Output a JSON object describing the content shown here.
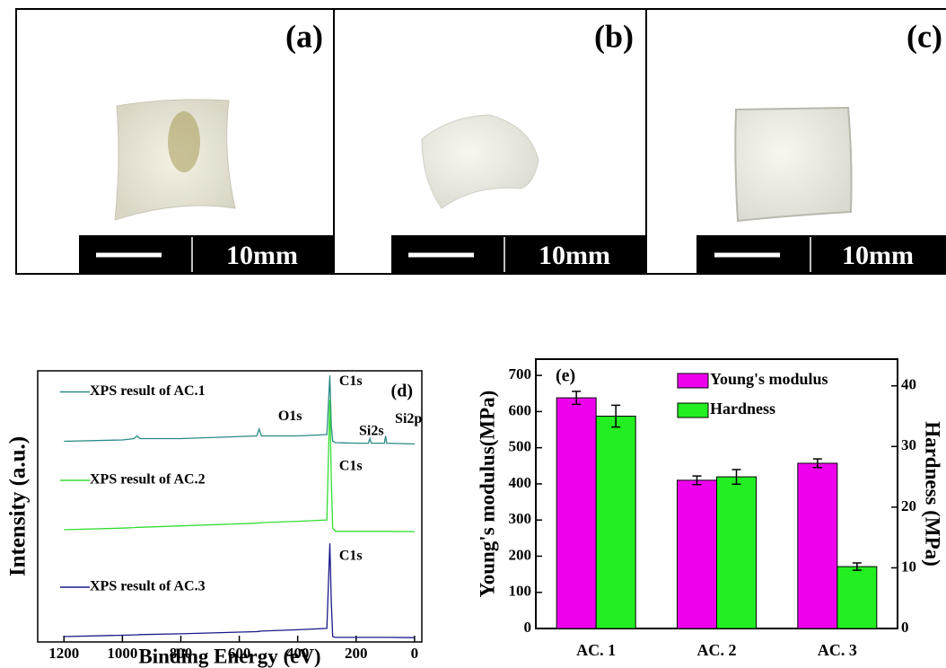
{
  "panels": [
    {
      "label": "(a)",
      "scale": "10mm"
    },
    {
      "label": "(b)",
      "scale": "10mm"
    },
    {
      "label": "(c)",
      "scale": "10mm"
    }
  ],
  "chart_data": [
    {
      "type": "line",
      "panel_label": "(d)",
      "xlabel": "Binding Energy (eV)",
      "ylabel": "Intensity (a.u.)",
      "x": [
        1200,
        1000,
        960,
        950,
        940,
        800,
        540,
        532,
        524,
        400,
        300,
        290,
        285,
        280,
        270,
        200,
        158,
        153,
        148,
        103,
        99,
        95,
        0
      ],
      "xlim": [
        1290,
        -25
      ],
      "xticks": [
        1200,
        1000,
        800,
        600,
        400,
        200,
        0
      ],
      "ylim": [
        0,
        100
      ],
      "series": [
        {
          "name": "XPS result of AC.1",
          "color": "#2a8a86",
          "values": [
            74,
            74.5,
            75,
            76,
            75,
            75,
            76,
            78.5,
            76,
            76,
            76.5,
            98.3,
            80,
            74,
            73.5,
            73.3,
            73.3,
            75,
            73.3,
            73.3,
            76,
            73.3,
            73
          ]
        },
        {
          "name": "XPS result of AC.2",
          "color": "#33dd33",
          "values": [
            41.4,
            42,
            42.2,
            42.3,
            42.3,
            42.8,
            43.8,
            43.9,
            44,
            44.5,
            45,
            89.4,
            60,
            42,
            40.8,
            40.8,
            40.8,
            40.8,
            40.8,
            40.8,
            40.8,
            40.8,
            40.7
          ]
        },
        {
          "name": "XPS result of AC.3",
          "color": "#1a1a8a",
          "values": [
            2,
            2.5,
            2.6,
            2.6,
            2.7,
            3,
            3.8,
            3.9,
            4,
            4.5,
            5,
            36.4,
            15,
            2,
            1.7,
            1.7,
            1.7,
            1.7,
            1.7,
            1.7,
            1.7,
            1.7,
            1.6
          ]
        }
      ],
      "annotations": [
        {
          "text": "C1s",
          "x": 258,
          "y": 96
        },
        {
          "text": "O1s",
          "x": 467,
          "y": 83
        },
        {
          "text": "Si2s",
          "x": 190,
          "y": 77.5
        },
        {
          "text": "Si2p",
          "x": 67,
          "y": 82
        },
        {
          "text": "C1s",
          "x": 258,
          "y": 64.6
        },
        {
          "text": "C1s",
          "x": 258,
          "y": 31.5
        }
      ]
    },
    {
      "type": "bar",
      "panel_label": "(e)",
      "ylabel": "Young's modulus(MPa)",
      "y2label": "Hardness (MPa)",
      "categories": [
        "AC. 1",
        "AC. 2",
        "AC. 3"
      ],
      "ylim": [
        0,
        745
      ],
      "yticks": [
        0,
        100,
        200,
        300,
        400,
        500,
        600,
        700
      ],
      "y2lim": [
        0,
        44.4
      ],
      "y2ticks": [
        0,
        10,
        20,
        30,
        40
      ],
      "legend": "upper right",
      "series": [
        {
          "name": "Young's modulus",
          "color": "#ee00ee",
          "values": [
            638,
            410,
            457
          ],
          "errors": [
            18,
            12,
            12
          ]
        },
        {
          "name": "Hardness",
          "color": "#22ee22",
          "axis": "y2",
          "values": [
            35,
            25,
            10.2
          ],
          "errors": [
            1.8,
            1.2,
            0.6
          ]
        }
      ]
    }
  ]
}
